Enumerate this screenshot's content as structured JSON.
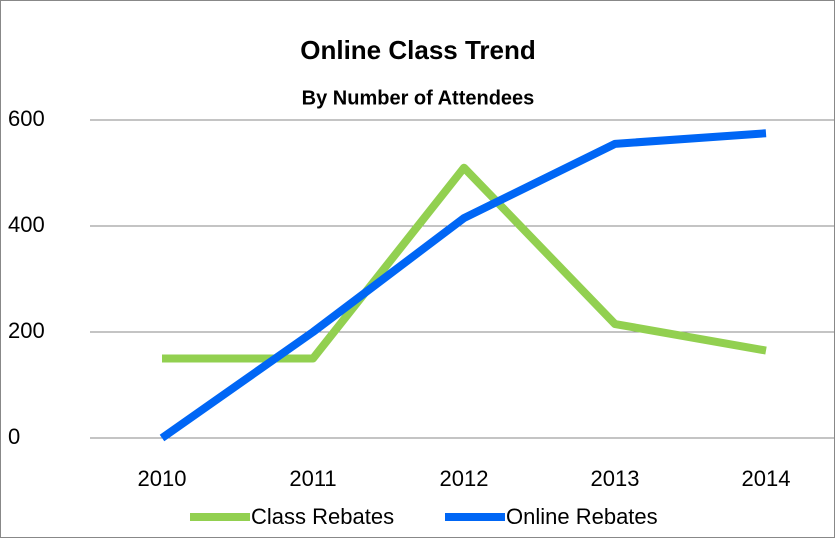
{
  "chart_data": {
    "type": "line",
    "title": "Online Class Trend",
    "subtitle": "By Number of Attendees",
    "categories": [
      "2010",
      "2011",
      "2012",
      "2013",
      "2014"
    ],
    "series": [
      {
        "name": "Class Rebates",
        "color": "#92d050",
        "values": [
          150,
          150,
          510,
          215,
          165
        ]
      },
      {
        "name": "Online Rebates",
        "color": "#0066f5",
        "values": [
          0,
          200,
          415,
          555,
          575
        ]
      }
    ],
    "ylim": [
      0,
      600
    ],
    "yticks": [
      0,
      200,
      400,
      600
    ],
    "grid": true,
    "legend": "bottom"
  }
}
